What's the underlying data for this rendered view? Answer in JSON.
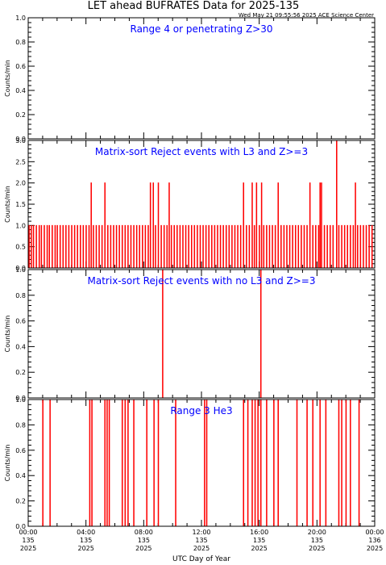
{
  "header": {
    "title": "LET ahead BUFRATES Data for 2025-135",
    "timestamp": "Wed May 21 09:55:56 2025 ACE Science Center"
  },
  "colors": {
    "data": "#ff0000",
    "panel_label": "#0000ff",
    "axis": "#000000",
    "background": "#ffffff"
  },
  "chart_data": [
    {
      "type": "line",
      "title": "Range 4 or   penetrating Z>30",
      "ylabel": "Counts/min",
      "ylim": [
        0,
        1
      ],
      "yticks": [
        "0.0",
        "0.2",
        "0.4",
        "0.6",
        "0.8",
        "1.0"
      ],
      "xlim": [
        0,
        24
      ],
      "baseline": 0,
      "spikes": []
    },
    {
      "type": "line",
      "title": "Matrix-sort Reject events with L3 and Z>=3",
      "ylabel": "Counts/min",
      "ylim": [
        0,
        3
      ],
      "yticks": [
        "0.0",
        "0.5",
        "1.0",
        "1.5",
        "2.0",
        "2.5",
        "3.0"
      ],
      "xlim": [
        0,
        24
      ],
      "baseline": 0,
      "spikes": [
        {
          "x": 0.05,
          "y": 1
        },
        {
          "x": 0.2,
          "y": 1
        },
        {
          "x": 0.35,
          "y": 1
        },
        {
          "x": 0.55,
          "y": 1
        },
        {
          "x": 0.75,
          "y": 1
        },
        {
          "x": 0.9,
          "y": 1
        },
        {
          "x": 1.1,
          "y": 1
        },
        {
          "x": 1.3,
          "y": 1
        },
        {
          "x": 1.45,
          "y": 1
        },
        {
          "x": 1.65,
          "y": 1
        },
        {
          "x": 1.85,
          "y": 1
        },
        {
          "x": 2.0,
          "y": 1
        },
        {
          "x": 2.2,
          "y": 1
        },
        {
          "x": 2.4,
          "y": 1
        },
        {
          "x": 2.6,
          "y": 1
        },
        {
          "x": 2.8,
          "y": 1
        },
        {
          "x": 3.0,
          "y": 1
        },
        {
          "x": 3.2,
          "y": 1
        },
        {
          "x": 3.4,
          "y": 1
        },
        {
          "x": 3.6,
          "y": 1
        },
        {
          "x": 3.8,
          "y": 1
        },
        {
          "x": 4.0,
          "y": 1
        },
        {
          "x": 4.2,
          "y": 1
        },
        {
          "x": 4.35,
          "y": 2
        },
        {
          "x": 4.5,
          "y": 1
        },
        {
          "x": 4.7,
          "y": 1
        },
        {
          "x": 4.9,
          "y": 1
        },
        {
          "x": 5.1,
          "y": 1
        },
        {
          "x": 5.3,
          "y": 2
        },
        {
          "x": 5.5,
          "y": 1
        },
        {
          "x": 5.7,
          "y": 1
        },
        {
          "x": 5.9,
          "y": 1
        },
        {
          "x": 6.1,
          "y": 1
        },
        {
          "x": 6.3,
          "y": 1
        },
        {
          "x": 6.5,
          "y": 1
        },
        {
          "x": 6.7,
          "y": 1
        },
        {
          "x": 6.9,
          "y": 1
        },
        {
          "x": 7.1,
          "y": 1
        },
        {
          "x": 7.3,
          "y": 1
        },
        {
          "x": 7.5,
          "y": 1
        },
        {
          "x": 7.7,
          "y": 1
        },
        {
          "x": 7.9,
          "y": 1
        },
        {
          "x": 8.1,
          "y": 1
        },
        {
          "x": 8.3,
          "y": 1
        },
        {
          "x": 8.45,
          "y": 2
        },
        {
          "x": 8.65,
          "y": 2
        },
        {
          "x": 8.8,
          "y": 1
        },
        {
          "x": 9.0,
          "y": 2
        },
        {
          "x": 9.2,
          "y": 1
        },
        {
          "x": 9.4,
          "y": 1
        },
        {
          "x": 9.6,
          "y": 1
        },
        {
          "x": 9.75,
          "y": 2
        },
        {
          "x": 9.9,
          "y": 1
        },
        {
          "x": 10.1,
          "y": 1
        },
        {
          "x": 10.3,
          "y": 1
        },
        {
          "x": 10.5,
          "y": 1
        },
        {
          "x": 10.7,
          "y": 1
        },
        {
          "x": 10.9,
          "y": 1
        },
        {
          "x": 11.1,
          "y": 1
        },
        {
          "x": 11.3,
          "y": 1
        },
        {
          "x": 11.5,
          "y": 1
        },
        {
          "x": 11.7,
          "y": 1
        },
        {
          "x": 11.9,
          "y": 1
        },
        {
          "x": 12.1,
          "y": 1
        },
        {
          "x": 12.3,
          "y": 1
        },
        {
          "x": 12.5,
          "y": 1
        },
        {
          "x": 12.7,
          "y": 1
        },
        {
          "x": 12.9,
          "y": 1
        },
        {
          "x": 13.1,
          "y": 1
        },
        {
          "x": 13.3,
          "y": 1
        },
        {
          "x": 13.5,
          "y": 1
        },
        {
          "x": 13.7,
          "y": 1
        },
        {
          "x": 13.9,
          "y": 1
        },
        {
          "x": 14.1,
          "y": 1
        },
        {
          "x": 14.3,
          "y": 1
        },
        {
          "x": 14.5,
          "y": 1
        },
        {
          "x": 14.7,
          "y": 1
        },
        {
          "x": 14.9,
          "y": 2
        },
        {
          "x": 15.1,
          "y": 1
        },
        {
          "x": 15.3,
          "y": 1
        },
        {
          "x": 15.5,
          "y": 2
        },
        {
          "x": 15.65,
          "y": 1
        },
        {
          "x": 15.8,
          "y": 2
        },
        {
          "x": 16.0,
          "y": 1
        },
        {
          "x": 16.15,
          "y": 2
        },
        {
          "x": 16.3,
          "y": 1
        },
        {
          "x": 16.5,
          "y": 1
        },
        {
          "x": 16.7,
          "y": 1
        },
        {
          "x": 16.9,
          "y": 1
        },
        {
          "x": 17.1,
          "y": 1
        },
        {
          "x": 17.3,
          "y": 2
        },
        {
          "x": 17.5,
          "y": 1
        },
        {
          "x": 17.7,
          "y": 1
        },
        {
          "x": 17.9,
          "y": 1
        },
        {
          "x": 18.1,
          "y": 1
        },
        {
          "x": 18.3,
          "y": 1
        },
        {
          "x": 18.5,
          "y": 1
        },
        {
          "x": 18.7,
          "y": 1
        },
        {
          "x": 18.9,
          "y": 1
        },
        {
          "x": 19.1,
          "y": 1
        },
        {
          "x": 19.3,
          "y": 1
        },
        {
          "x": 19.5,
          "y": 2
        },
        {
          "x": 19.7,
          "y": 1
        },
        {
          "x": 19.9,
          "y": 1
        },
        {
          "x": 20.1,
          "y": 1
        },
        {
          "x": 20.2,
          "y": 2
        },
        {
          "x": 20.3,
          "y": 2
        },
        {
          "x": 20.5,
          "y": 1
        },
        {
          "x": 20.7,
          "y": 1
        },
        {
          "x": 20.9,
          "y": 1
        },
        {
          "x": 21.1,
          "y": 1
        },
        {
          "x": 21.35,
          "y": 3
        },
        {
          "x": 21.5,
          "y": 1
        },
        {
          "x": 21.7,
          "y": 1
        },
        {
          "x": 21.9,
          "y": 1
        },
        {
          "x": 22.1,
          "y": 1
        },
        {
          "x": 22.3,
          "y": 1
        },
        {
          "x": 22.5,
          "y": 1
        },
        {
          "x": 22.65,
          "y": 2
        },
        {
          "x": 22.8,
          "y": 1
        },
        {
          "x": 23.0,
          "y": 1
        },
        {
          "x": 23.2,
          "y": 1
        },
        {
          "x": 23.4,
          "y": 1
        },
        {
          "x": 23.6,
          "y": 1
        },
        {
          "x": 23.8,
          "y": 1
        }
      ]
    },
    {
      "type": "line",
      "title": "Matrix-sort Reject events with no L3 and Z>=3",
      "ylabel": "Counts/min",
      "ylim": [
        0,
        1
      ],
      "yticks": [
        "0.0",
        "0.2",
        "0.4",
        "0.6",
        "0.8",
        "1.0"
      ],
      "xlim": [
        0,
        24
      ],
      "baseline": 0,
      "spikes": [
        {
          "x": 9.3,
          "y": 1
        },
        {
          "x": 16.1,
          "y": 1
        }
      ]
    },
    {
      "type": "line",
      "title": "Range 3 He3",
      "ylabel": "Counts/min",
      "ylim": [
        0,
        1
      ],
      "yticks": [
        "0.0",
        "0.2",
        "0.4",
        "0.6",
        "0.8",
        "1.0"
      ],
      "xlim": [
        0,
        24
      ],
      "baseline": 0,
      "spikes": [
        {
          "x": 1.0,
          "y": 1
        },
        {
          "x": 1.5,
          "y": 1
        },
        {
          "x": 4.25,
          "y": 1
        },
        {
          "x": 4.4,
          "y": 1
        },
        {
          "x": 5.3,
          "y": 1
        },
        {
          "x": 5.45,
          "y": 1
        },
        {
          "x": 5.6,
          "y": 1
        },
        {
          "x": 6.5,
          "y": 1
        },
        {
          "x": 6.7,
          "y": 1
        },
        {
          "x": 6.9,
          "y": 1
        },
        {
          "x": 7.3,
          "y": 1
        },
        {
          "x": 8.2,
          "y": 1
        },
        {
          "x": 8.7,
          "y": 1
        },
        {
          "x": 9.0,
          "y": 1
        },
        {
          "x": 10.2,
          "y": 1
        },
        {
          "x": 12.2,
          "y": 1
        },
        {
          "x": 12.35,
          "y": 1
        },
        {
          "x": 14.9,
          "y": 1
        },
        {
          "x": 15.2,
          "y": 1
        },
        {
          "x": 15.5,
          "y": 1
        },
        {
          "x": 15.7,
          "y": 1
        },
        {
          "x": 15.9,
          "y": 1
        },
        {
          "x": 16.1,
          "y": 1
        },
        {
          "x": 16.5,
          "y": 1
        },
        {
          "x": 17.0,
          "y": 1
        },
        {
          "x": 17.3,
          "y": 1
        },
        {
          "x": 18.6,
          "y": 1
        },
        {
          "x": 19.3,
          "y": 1
        },
        {
          "x": 19.7,
          "y": 1
        },
        {
          "x": 20.2,
          "y": 1
        },
        {
          "x": 20.6,
          "y": 1
        },
        {
          "x": 21.5,
          "y": 1
        },
        {
          "x": 21.7,
          "y": 1
        },
        {
          "x": 22.0,
          "y": 1
        },
        {
          "x": 22.3,
          "y": 1
        },
        {
          "x": 22.9,
          "y": 1
        }
      ]
    }
  ],
  "x_axis": {
    "xlabel": "UTC Day of Year",
    "ticks": [
      {
        "x": 0,
        "time": "00:00",
        "doy": "135",
        "year": "2025"
      },
      {
        "x": 4,
        "time": "04:00",
        "doy": "135",
        "year": "2025"
      },
      {
        "x": 8,
        "time": "08:00",
        "doy": "135",
        "year": "2025"
      },
      {
        "x": 12,
        "time": "12:00",
        "doy": "135",
        "year": "2025"
      },
      {
        "x": 16,
        "time": "16:00",
        "doy": "135",
        "year": "2025"
      },
      {
        "x": 20,
        "time": "20:00",
        "doy": "135",
        "year": "2025"
      },
      {
        "x": 24,
        "time": "00:00",
        "doy": "136",
        "year": "2025"
      }
    ]
  }
}
